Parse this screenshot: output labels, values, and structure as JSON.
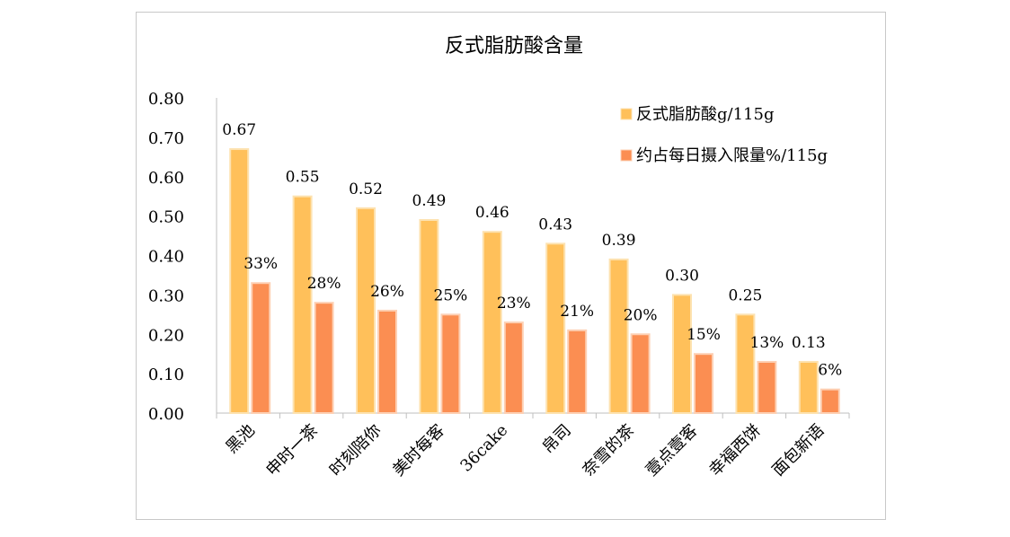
{
  "chart_data": {
    "type": "bar",
    "title": "反式脂肪酸含量",
    "xlabel": "",
    "ylabel": "",
    "ylim": [
      0,
      0.8
    ],
    "yticks": [
      "0.00",
      "0.10",
      "0.20",
      "0.30",
      "0.40",
      "0.50",
      "0.60",
      "0.70",
      "0.80"
    ],
    "legend_position": "top-right",
    "categories": [
      "黑池",
      "申时一茶",
      "时刻陪你",
      "美时每客",
      "36cake",
      "帛司",
      "奈雪的茶",
      "壹点壹客",
      "幸福西饼",
      "面包新语"
    ],
    "series": [
      {
        "name": "反式脂肪酸g/115g",
        "values": [
          0.67,
          0.55,
          0.52,
          0.49,
          0.46,
          0.43,
          0.39,
          0.3,
          0.25,
          0.13
        ],
        "labels": [
          "0.67",
          "0.55",
          "0.52",
          "0.49",
          "0.46",
          "0.43",
          "0.39",
          "0.30",
          "0.25",
          "0.13"
        ],
        "color": "#ffc05a"
      },
      {
        "name": "约占每日摄入限量%/115g",
        "values": [
          0.33,
          0.28,
          0.26,
          0.25,
          0.23,
          0.21,
          0.2,
          0.15,
          0.13,
          0.06
        ],
        "labels": [
          "33%",
          "28%",
          "26%",
          "25%",
          "23%",
          "21%",
          "20%",
          "15%",
          "13%",
          "6%"
        ],
        "color": "#fb8e52"
      }
    ]
  }
}
